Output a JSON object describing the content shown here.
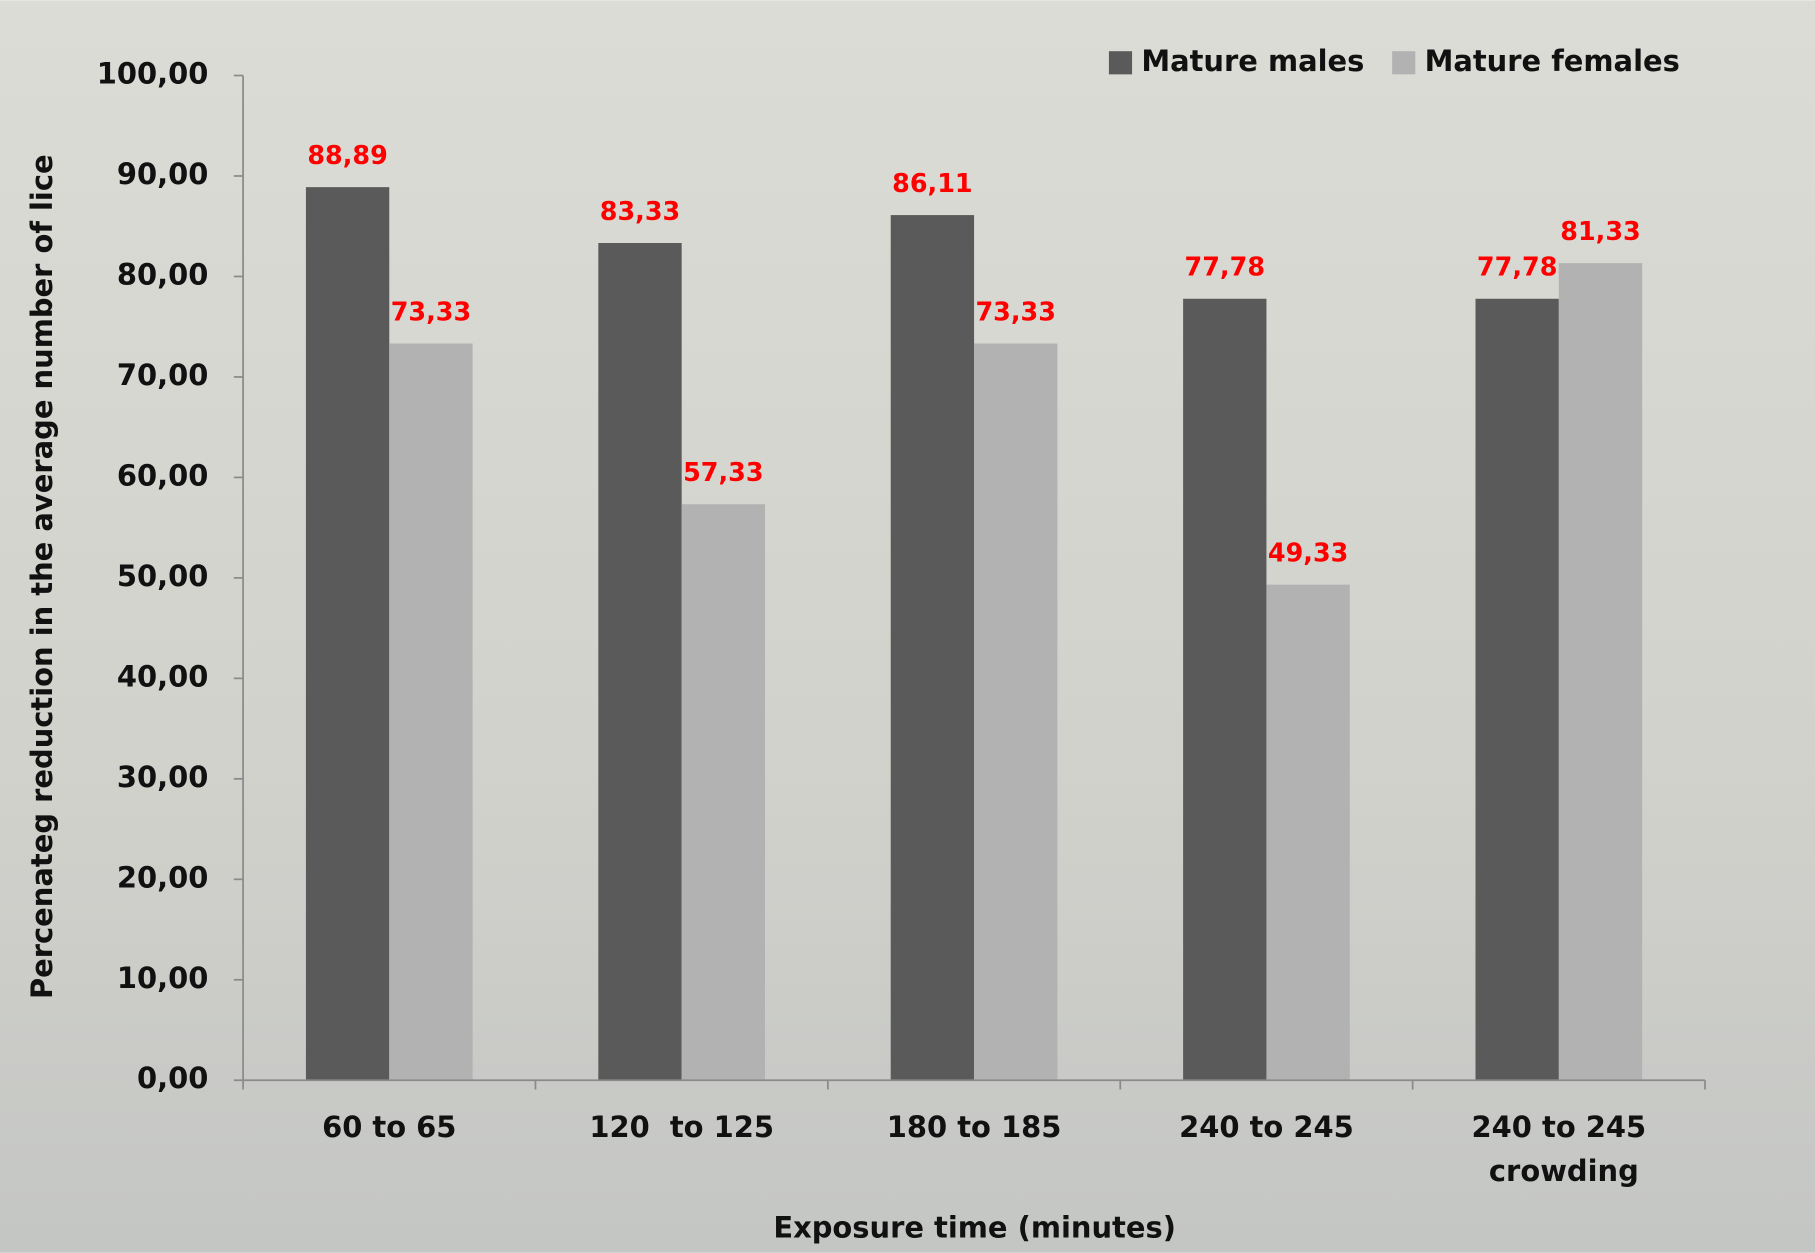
{
  "chart_data": {
    "type": "bar",
    "categories": [
      "60 to 65",
      "120  to 125",
      "180 to 185",
      "240 to 245",
      "240 to 245 crowding"
    ],
    "series": [
      {
        "name": "Mature males",
        "color": "#5a5a5a",
        "values": [
          88.89,
          83.33,
          86.11,
          77.78,
          77.78
        ],
        "value_labels": [
          "88,89",
          "83,33",
          "86,11",
          "77,78",
          "77,78"
        ]
      },
      {
        "name": "Mature females",
        "color": "#b2b2b2",
        "values": [
          73.33,
          57.33,
          73.33,
          49.33,
          81.33
        ],
        "value_labels": [
          "73,33",
          "57,33",
          "73,33",
          "49,33",
          "81,33"
        ]
      }
    ],
    "ylim": [
      0,
      100
    ],
    "yticks": [
      {
        "value": 0,
        "label": "0,00"
      },
      {
        "value": 10,
        "label": "10,00"
      },
      {
        "value": 20,
        "label": "20,00"
      },
      {
        "value": 30,
        "label": "30,00"
      },
      {
        "value": 40,
        "label": "40,00"
      },
      {
        "value": 50,
        "label": "50,00"
      },
      {
        "value": 60,
        "label": "60,00"
      },
      {
        "value": 70,
        "label": "70,00"
      },
      {
        "value": 80,
        "label": "80,00"
      },
      {
        "value": 90,
        "label": "90,00"
      },
      {
        "value": 100,
        "label": "100,00"
      }
    ],
    "x_label": "Exposure time (minutes)",
    "y_label": "Percenateg reduction in the average number of lice",
    "legend": "top-right"
  }
}
